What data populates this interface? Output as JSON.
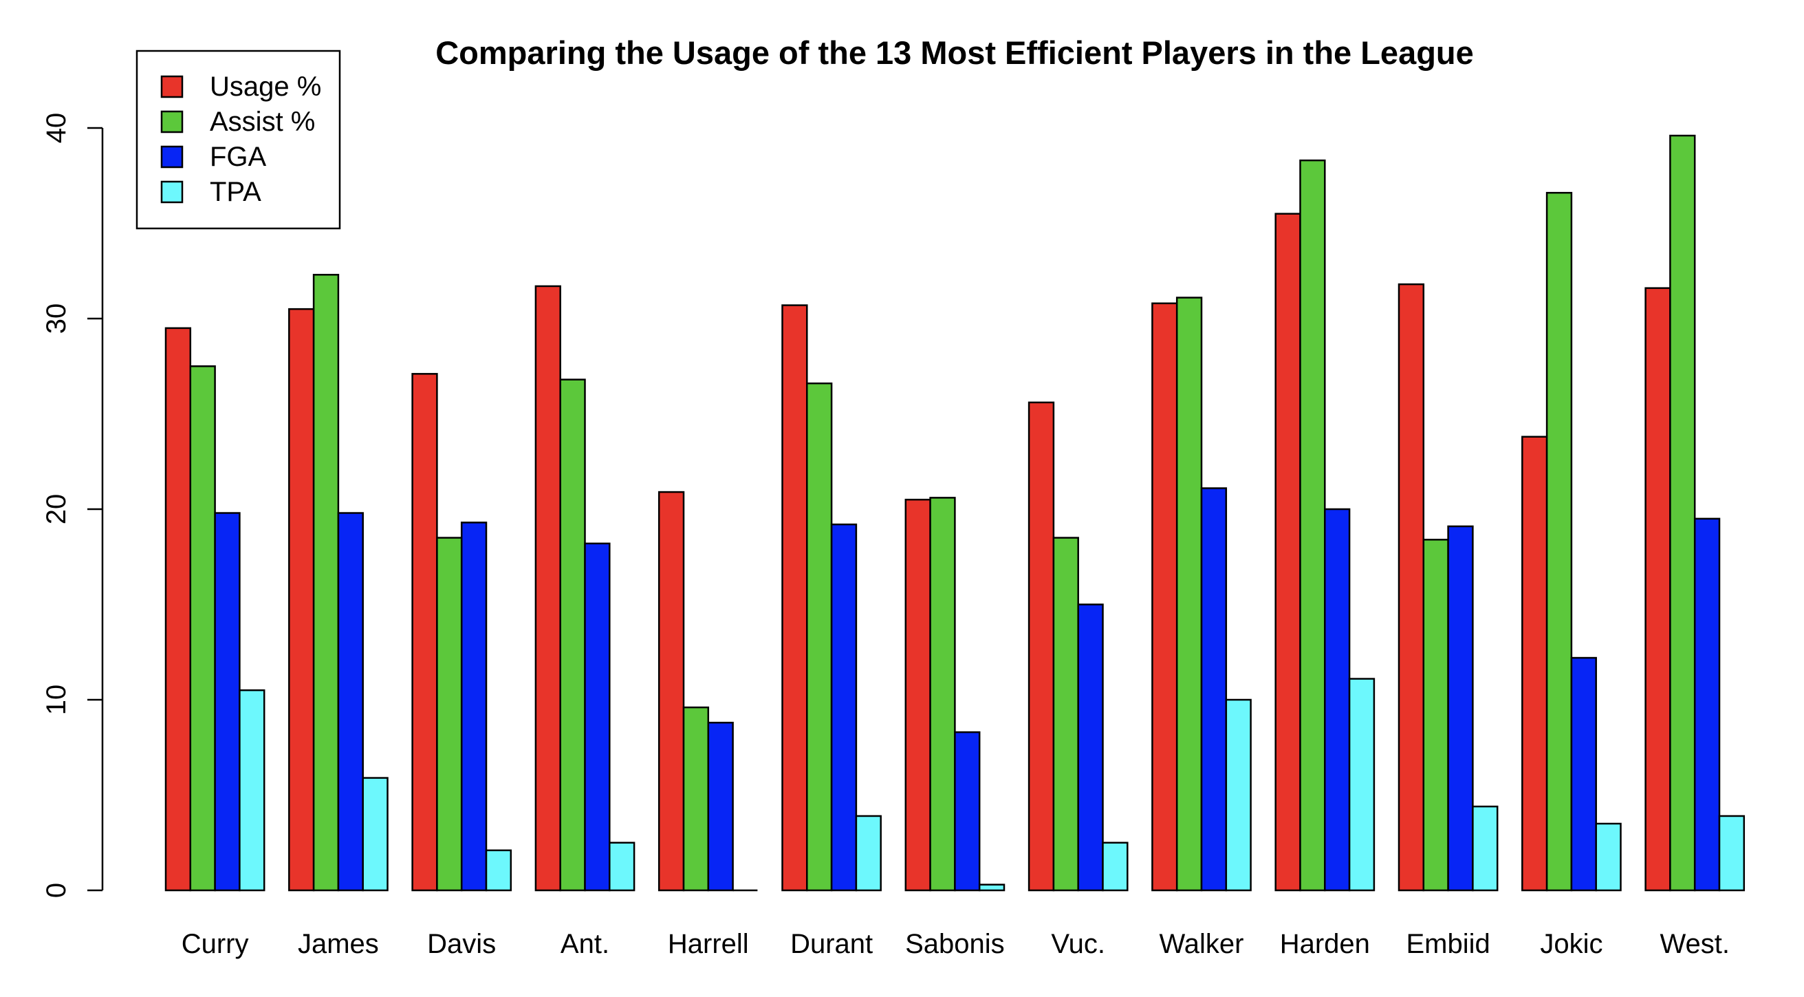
{
  "chart_data": {
    "type": "bar",
    "title": "Comparing the Usage of the 13 Most Efficient Players in the League",
    "xlabel": "",
    "ylabel": "",
    "ylim": [
      0,
      40
    ],
    "yticks": [
      "0",
      "10",
      "20",
      "30",
      "40"
    ],
    "grid": false,
    "legend_position": "top-left",
    "categories": [
      "Curry",
      "James",
      "Davis",
      "Ant.",
      "Harrell",
      "Durant",
      "Sabonis",
      "Vuc.",
      "Walker",
      "Harden",
      "Embiid",
      "Jokic",
      "West."
    ],
    "series": [
      {
        "name": "Usage %",
        "color": "#e8342a",
        "values": [
          29.5,
          30.5,
          27.1,
          31.7,
          20.9,
          30.7,
          20.5,
          25.6,
          30.8,
          35.5,
          31.8,
          23.8,
          31.6
        ]
      },
      {
        "name": "Assist %",
        "color": "#5cc83b",
        "values": [
          27.5,
          32.3,
          18.5,
          26.8,
          9.6,
          26.6,
          20.6,
          18.5,
          31.1,
          38.3,
          18.4,
          36.6,
          39.6
        ]
      },
      {
        "name": "FGA",
        "color": "#0725f5",
        "values": [
          19.8,
          19.8,
          19.3,
          18.2,
          8.8,
          19.2,
          8.3,
          15.0,
          21.1,
          20.0,
          19.1,
          12.2,
          19.5
        ]
      },
      {
        "name": "TPA",
        "color": "#6df8fd",
        "values": [
          10.5,
          5.9,
          2.1,
          2.5,
          0.0,
          3.9,
          0.3,
          2.5,
          10.0,
          11.1,
          4.4,
          3.5,
          3.9
        ]
      }
    ]
  }
}
